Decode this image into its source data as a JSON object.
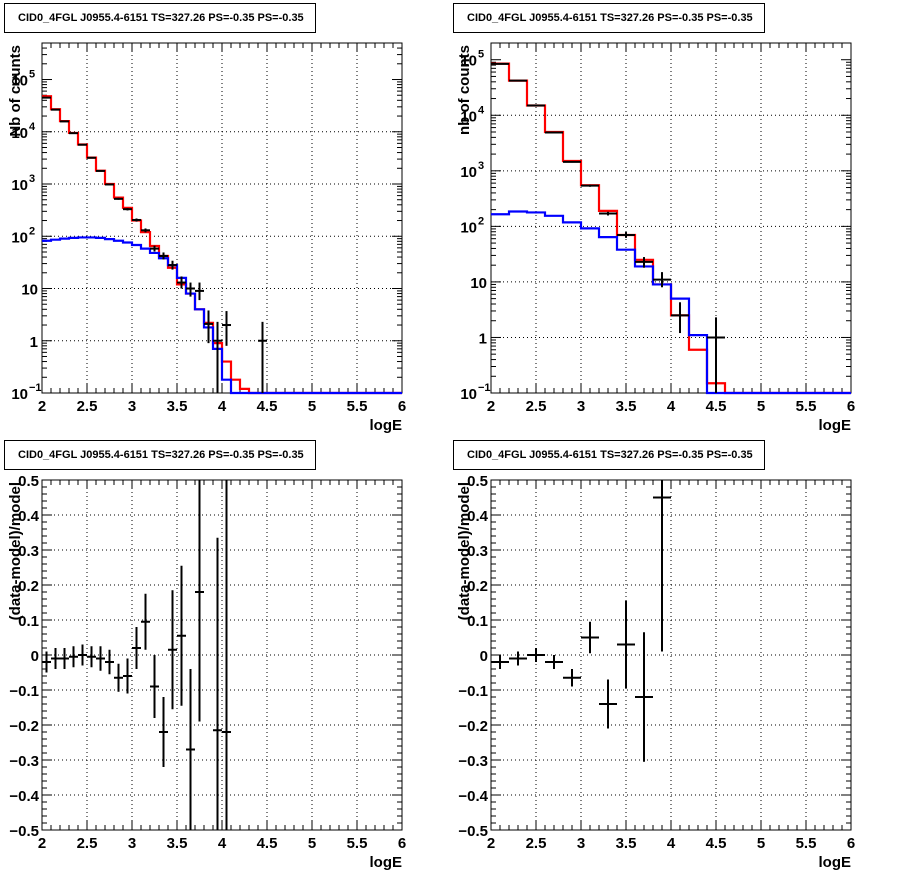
{
  "colors": {
    "data": "#000000",
    "model_total": "#ff0000",
    "model_source": "#0000ff",
    "grid": "#000000"
  },
  "chart_data": [
    {
      "panel": "top-left",
      "type": "line",
      "title": "CID0_4FGL J0955.4-6151 TS=327.26 PS=-0.35 PS=-0.35",
      "xlabel": "logE",
      "ylabel": "Nb of counts",
      "xlim": [
        2,
        6
      ],
      "ylim": [
        0.1,
        500000
      ],
      "log_y": true,
      "grid": true,
      "xticks": [
        "2",
        "2.5",
        "3",
        "3.5",
        "4",
        "4.5",
        "5",
        "5.5",
        "6"
      ],
      "yticks": [
        {
          "v": 0.1,
          "label": "10",
          "sup": "−1"
        },
        {
          "v": 1,
          "label": "1",
          "sup": ""
        },
        {
          "v": 10,
          "label": "10",
          "sup": ""
        },
        {
          "v": 100,
          "label": "10",
          "sup": "2"
        },
        {
          "v": 1000,
          "label": "10",
          "sup": "3"
        },
        {
          "v": 10000,
          "label": "10",
          "sup": "4"
        },
        {
          "v": 100000,
          "label": "10",
          "sup": "5"
        }
      ],
      "bin_width": 0.1,
      "bin_start": 2.0,
      "series": [
        {
          "name": "",
          "kind": "model_total",
          "values": [
            48000,
            27000,
            16000,
            9500,
            5700,
            3200,
            1800,
            1000,
            550,
            350,
            200,
            120,
            65,
            42,
            25,
            12,
            8,
            4,
            2.2,
            0.9,
            0.4,
            0.18,
            0.12,
            0.1,
            0.1,
            0.1,
            0.1,
            0.1,
            0.1,
            0.1,
            0.1,
            0.1,
            0.1,
            0.1,
            0.1,
            0.1,
            0.1,
            0.1,
            0.1,
            0.1
          ]
        },
        {
          "name": "",
          "kind": "model_source",
          "values": [
            82,
            86,
            90,
            93,
            95,
            95,
            93,
            88,
            82,
            76,
            68,
            58,
            48,
            38,
            28,
            16,
            8,
            4,
            1.8,
            0.7,
            0.18,
            0.1,
            0.1,
            0.1,
            0.1,
            0.1,
            0.1,
            0.1,
            0.1,
            0.1,
            0.1,
            0.1,
            0.1,
            0.1,
            0.1,
            0.1,
            0.1,
            0.1,
            0.1,
            0.1
          ]
        }
      ],
      "points": [
        {
          "x": 2.05,
          "y": 45000,
          "yerr_lo": 44500,
          "yerr_hi": 45500
        },
        {
          "x": 2.15,
          "y": 26500,
          "yerr_lo": 26200,
          "yerr_hi": 26800
        },
        {
          "x": 2.25,
          "y": 15800,
          "yerr_lo": 15600,
          "yerr_hi": 16000
        },
        {
          "x": 2.35,
          "y": 9400,
          "yerr_lo": 9300,
          "yerr_hi": 9500
        },
        {
          "x": 2.45,
          "y": 5650,
          "yerr_lo": 5580,
          "yerr_hi": 5720
        },
        {
          "x": 2.55,
          "y": 3180,
          "yerr_lo": 3130,
          "yerr_hi": 3230
        },
        {
          "x": 2.65,
          "y": 1780,
          "yerr_lo": 1740,
          "yerr_hi": 1820
        },
        {
          "x": 2.75,
          "y": 980,
          "yerr_lo": 950,
          "yerr_hi": 1010
        },
        {
          "x": 2.85,
          "y": 520,
          "yerr_lo": 500,
          "yerr_hi": 545
        },
        {
          "x": 2.95,
          "y": 330,
          "yerr_lo": 312,
          "yerr_hi": 348
        },
        {
          "x": 3.05,
          "y": 205,
          "yerr_lo": 191,
          "yerr_hi": 219
        },
        {
          "x": 3.15,
          "y": 130,
          "yerr_lo": 119,
          "yerr_hi": 141
        },
        {
          "x": 3.25,
          "y": 58,
          "yerr_lo": 51,
          "yerr_hi": 66
        },
        {
          "x": 3.35,
          "y": 42,
          "yerr_lo": 36,
          "yerr_hi": 49
        },
        {
          "x": 3.45,
          "y": 28,
          "yerr_lo": 23,
          "yerr_hi": 34
        },
        {
          "x": 3.55,
          "y": 13,
          "yerr_lo": 10,
          "yerr_hi": 17
        },
        {
          "x": 3.65,
          "y": 10,
          "yerr_lo": 7,
          "yerr_hi": 13
        },
        {
          "x": 3.75,
          "y": 9,
          "yerr_lo": 6,
          "yerr_hi": 13
        },
        {
          "x": 3.85,
          "y": 2.1,
          "yerr_lo": 0.9,
          "yerr_hi": 3.8
        },
        {
          "x": 3.95,
          "y": 1.0,
          "yerr_lo": 0.1,
          "yerr_hi": 2.3
        },
        {
          "x": 4.05,
          "y": 2.0,
          "yerr_lo": 0.8,
          "yerr_hi": 3.7
        },
        {
          "x": 4.45,
          "y": 1.0,
          "yerr_lo": 0.1,
          "yerr_hi": 2.3
        }
      ]
    },
    {
      "panel": "top-right",
      "type": "line",
      "title": "CID0_4FGL J0955.4-6151 TS=327.26 PS=-0.35 PS=-0.35",
      "xlabel": "logE",
      "ylabel": "nb of counts",
      "xlim": [
        2,
        6
      ],
      "ylim": [
        0.1,
        200000
      ],
      "log_y": true,
      "grid": true,
      "xticks": [
        "2",
        "2.5",
        "3",
        "3.5",
        "4",
        "4.5",
        "5",
        "5.5",
        "6"
      ],
      "yticks": [
        {
          "v": 0.1,
          "label": "10",
          "sup": "−1"
        },
        {
          "v": 1,
          "label": "1",
          "sup": ""
        },
        {
          "v": 10,
          "label": "10",
          "sup": ""
        },
        {
          "v": 100,
          "label": "10",
          "sup": "2"
        },
        {
          "v": 1000,
          "label": "10",
          "sup": "3"
        },
        {
          "v": 10000,
          "label": "10",
          "sup": "4"
        },
        {
          "v": 100000,
          "label": "10",
          "sup": "5"
        }
      ],
      "bin_width": 0.2,
      "bin_start": 2.0,
      "series": [
        {
          "name": "",
          "kind": "model_total",
          "values": [
            85000,
            42000,
            15000,
            5000,
            1500,
            550,
            190,
            70,
            25,
            9,
            2.5,
            0.6,
            0.15,
            0.1,
            0.1,
            0.1,
            0.1,
            0.1,
            0.1,
            0.1
          ]
        },
        {
          "name": "",
          "kind": "model_source",
          "values": [
            165,
            185,
            178,
            155,
            118,
            92,
            64,
            38,
            19,
            9,
            5,
            1.1,
            0.1,
            0.1,
            0.1,
            0.1,
            0.1,
            0.1,
            0.1,
            0.1
          ]
        }
      ],
      "points": [
        {
          "x": 2.1,
          "y": 84000,
          "yerr_lo": 83700,
          "yerr_hi": 84300
        },
        {
          "x": 2.3,
          "y": 42000,
          "yerr_lo": 41800,
          "yerr_hi": 42200
        },
        {
          "x": 2.5,
          "y": 15000,
          "yerr_lo": 14880,
          "yerr_hi": 15120
        },
        {
          "x": 2.7,
          "y": 4900,
          "yerr_lo": 4830,
          "yerr_hi": 4970
        },
        {
          "x": 2.9,
          "y": 1450,
          "yerr_lo": 1410,
          "yerr_hi": 1490
        },
        {
          "x": 3.1,
          "y": 540,
          "yerr_lo": 516,
          "yerr_hi": 564
        },
        {
          "x": 3.3,
          "y": 170,
          "yerr_lo": 157,
          "yerr_hi": 183
        },
        {
          "x": 3.5,
          "y": 70,
          "yerr_lo": 62,
          "yerr_hi": 79
        },
        {
          "x": 3.7,
          "y": 23,
          "yerr_lo": 18,
          "yerr_hi": 28
        },
        {
          "x": 3.9,
          "y": 11,
          "yerr_lo": 8,
          "yerr_hi": 15
        },
        {
          "x": 4.1,
          "y": 2.5,
          "yerr_lo": 1.2,
          "yerr_hi": 4.3
        },
        {
          "x": 4.5,
          "y": 1.0,
          "yerr_lo": 0.1,
          "yerr_hi": 2.3
        }
      ]
    },
    {
      "panel": "bottom-left",
      "type": "scatter",
      "title": "CID0_4FGL J0955.4-6151 TS=327.26 PS=-0.35 PS=-0.35",
      "xlabel": "logE",
      "ylabel": "(data-model)/model",
      "xlim": [
        2,
        6
      ],
      "ylim": [
        -0.5,
        0.5
      ],
      "grid": true,
      "xticks": [
        "2",
        "2.5",
        "3",
        "3.5",
        "4",
        "4.5",
        "5",
        "5.5",
        "6"
      ],
      "yticks": [
        "−0.5",
        "−0.4",
        "−0.3",
        "−0.2",
        "−0.1",
        "0",
        "0.1",
        "0.2",
        "0.3",
        "0.4",
        "0.5"
      ],
      "xerr": 0.05,
      "points": [
        {
          "x": 2.05,
          "y": -0.02,
          "err": 0.03
        },
        {
          "x": 2.15,
          "y": -0.01,
          "err": 0.03
        },
        {
          "x": 2.25,
          "y": -0.01,
          "err": 0.03
        },
        {
          "x": 2.35,
          "y": -0.005,
          "err": 0.03
        },
        {
          "x": 2.45,
          "y": 0.0,
          "err": 0.03
        },
        {
          "x": 2.55,
          "y": -0.005,
          "err": 0.03
        },
        {
          "x": 2.65,
          "y": -0.01,
          "err": 0.035
        },
        {
          "x": 2.75,
          "y": -0.02,
          "err": 0.035
        },
        {
          "x": 2.85,
          "y": -0.065,
          "err": 0.04
        },
        {
          "x": 2.95,
          "y": -0.06,
          "err": 0.05
        },
        {
          "x": 3.05,
          "y": 0.02,
          "err": 0.06
        },
        {
          "x": 3.15,
          "y": 0.095,
          "err": 0.08
        },
        {
          "x": 3.25,
          "y": -0.09,
          "err": 0.09
        },
        {
          "x": 3.35,
          "y": -0.22,
          "err": 0.1
        },
        {
          "x": 3.45,
          "y": 0.015,
          "err": 0.17
        },
        {
          "x": 3.55,
          "y": 0.055,
          "err": 0.2
        },
        {
          "x": 3.65,
          "y": -0.27,
          "err": 0.23
        },
        {
          "x": 3.75,
          "y": 0.18,
          "err": 0.37
        },
        {
          "x": 3.95,
          "y": -0.215,
          "err": 0.55
        },
        {
          "x": 4.05,
          "y": -0.22,
          "err": 0.9
        }
      ]
    },
    {
      "panel": "bottom-right",
      "type": "scatter",
      "title": "CID0_4FGL J0955.4-6151 TS=327.26 PS=-0.35 PS=-0.35",
      "xlabel": "logE",
      "ylabel": "(data-model)/model",
      "xlim": [
        2,
        6
      ],
      "ylim": [
        -0.5,
        0.5
      ],
      "grid": true,
      "xticks": [
        "2",
        "2.5",
        "3",
        "3.5",
        "4",
        "4.5",
        "5",
        "5.5",
        "6"
      ],
      "yticks": [
        "−0.5",
        "−0.4",
        "−0.3",
        "−0.2",
        "−0.1",
        "0",
        "0.1",
        "0.2",
        "0.3",
        "0.4",
        "0.5"
      ],
      "xerr": 0.1,
      "points": [
        {
          "x": 2.1,
          "y": -0.02,
          "err": 0.02
        },
        {
          "x": 2.3,
          "y": -0.01,
          "err": 0.02
        },
        {
          "x": 2.5,
          "y": 0.0,
          "err": 0.02
        },
        {
          "x": 2.7,
          "y": -0.02,
          "err": 0.02
        },
        {
          "x": 2.9,
          "y": -0.065,
          "err": 0.025
        },
        {
          "x": 3.1,
          "y": 0.05,
          "err": 0.045
        },
        {
          "x": 3.3,
          "y": -0.14,
          "err": 0.07
        },
        {
          "x": 3.5,
          "y": 0.03,
          "err": 0.125
        },
        {
          "x": 3.7,
          "y": -0.12,
          "err": 0.185
        },
        {
          "x": 3.9,
          "y": 0.45,
          "err": 0.44
        }
      ]
    }
  ]
}
